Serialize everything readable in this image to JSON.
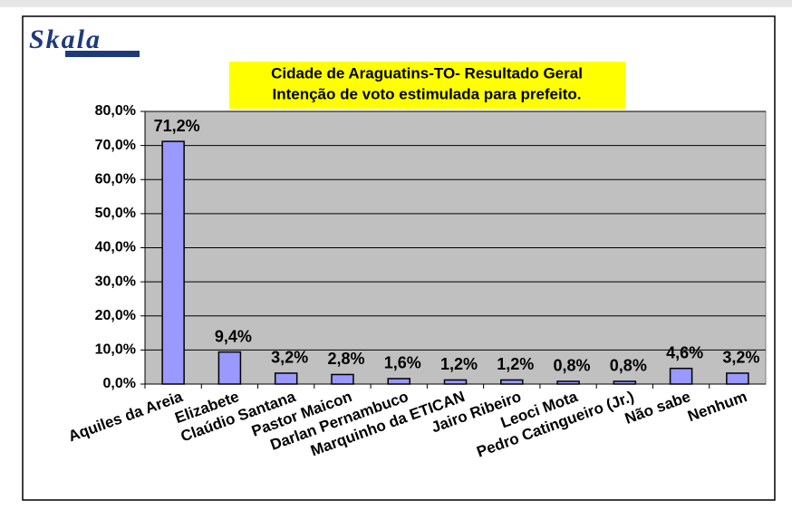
{
  "logo": "Skala",
  "chart_data": {
    "type": "bar",
    "title": "Cidade de Araguatins-TO- Resultado Geral",
    "subtitle": "Intenção de voto estimulada para prefeito.",
    "categories": [
      "Aquiles da Areia",
      "Elizabete",
      "Claúdio Santana",
      "Pastor Maicon",
      "Darlan Pernambuco",
      "Marquinho da ETICAN",
      "Jairo Ribeiro",
      "Leoci Mota",
      "Pedro Catingueiro (Jr.)",
      "Não sabe",
      "Nenhum"
    ],
    "values": [
      71.2,
      9.4,
      3.2,
      2.8,
      1.6,
      1.2,
      1.2,
      0.8,
      0.8,
      4.6,
      3.2
    ],
    "value_labels": [
      "71,2%",
      "9,4%",
      "3,2%",
      "2,8%",
      "1,6%",
      "1,2%",
      "1,2%",
      "0,8%",
      "0,8%",
      "4,6%",
      "3,2%"
    ],
    "color": "#9999ff",
    "ylim": [
      0,
      80
    ],
    "yticks": [
      {
        "value": 0,
        "label": "0,0%"
      },
      {
        "value": 10,
        "label": "10,0%"
      },
      {
        "value": 20,
        "label": "20,0%"
      },
      {
        "value": 30,
        "label": "30,0%"
      },
      {
        "value": 40,
        "label": "40,0%"
      },
      {
        "value": 50,
        "label": "50,0%"
      },
      {
        "value": 60,
        "label": "60,0%"
      },
      {
        "value": 70,
        "label": "70,0%"
      },
      {
        "value": 80,
        "label": "80,0%"
      }
    ],
    "grid": true
  }
}
